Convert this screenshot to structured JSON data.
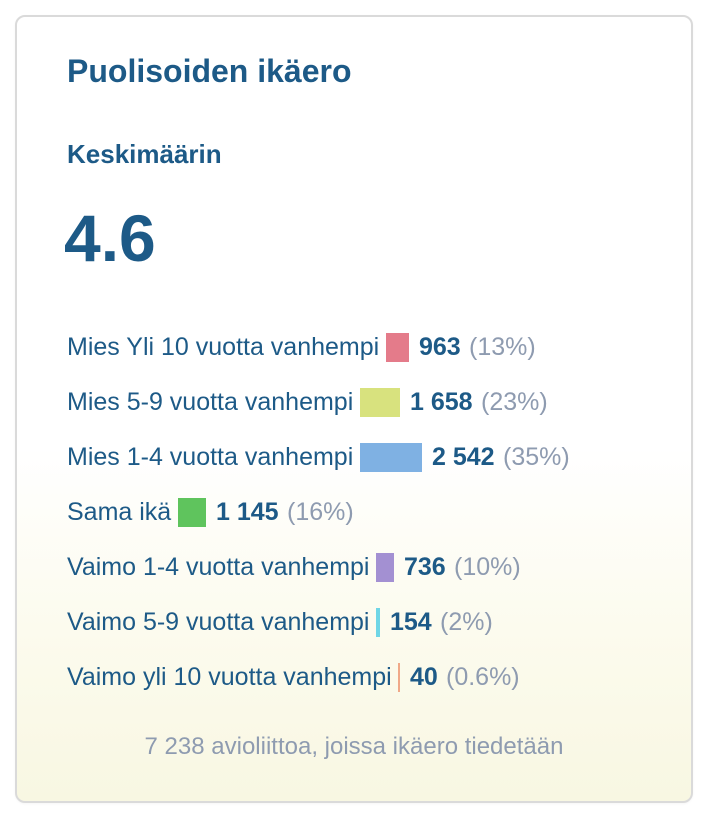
{
  "title": "Puolisoiden ikäero",
  "average": {
    "label": "Keskimäärin",
    "value": "4.6"
  },
  "chart_data": {
    "type": "bar",
    "orientation": "horizontal",
    "categories": [
      "Mies Yli 10 vuotta vanhempi",
      "Mies 5-9 vuotta vanhempi",
      "Mies 1-4 vuotta vanhempi",
      "Sama ikä",
      "Vaimo 1-4 vuotta vanhempi",
      "Vaimo 5-9 vuotta vanhempi",
      "Vaimo yli 10 vuotta vanhempi"
    ],
    "values": [
      963,
      1658,
      2542,
      1145,
      736,
      154,
      40
    ],
    "value_labels": [
      "963",
      "1 658",
      "2 542",
      "1 145",
      "736",
      "154",
      "40"
    ],
    "percent_labels": [
      "(13%)",
      "(23%)",
      "(35%)",
      "(16%)",
      "(10%)",
      "(2%)",
      "(0.6%)"
    ],
    "colors": [
      "#e47b8a",
      "#d8e27e",
      "#7fb1e3",
      "#5fc45d",
      "#a390d2",
      "#6fd6e6",
      "#f0a988"
    ],
    "title": "",
    "xlabel": "",
    "ylabel": ""
  },
  "footer": "7 238 avioliittoa, joissa ikäero tiedetään"
}
